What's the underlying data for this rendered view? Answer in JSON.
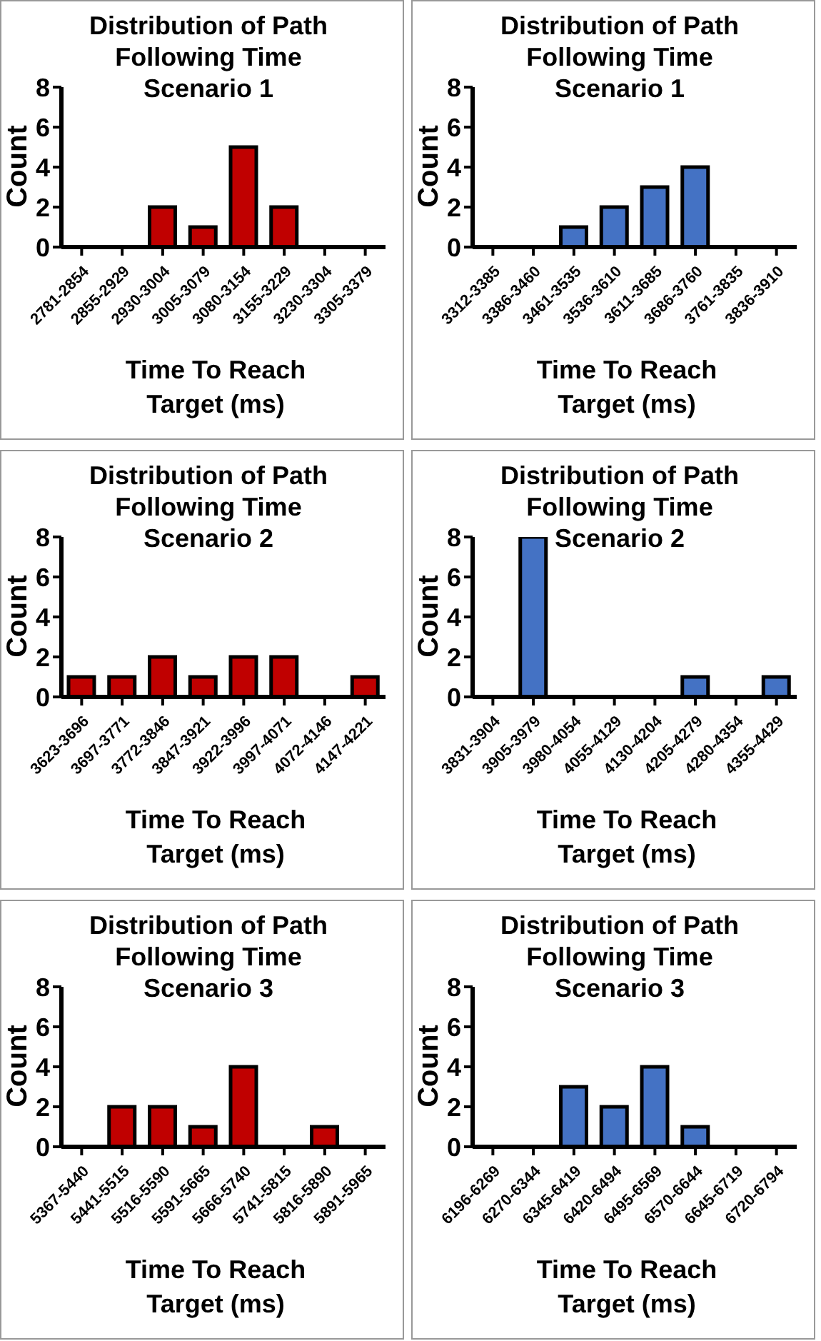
{
  "chart_data": [
    {
      "type": "bar",
      "title": "Distribution of Path Following Time Scenario 1",
      "xlabel": "Time To Reach Target (ms)",
      "ylabel": "Count",
      "categories": [
        "2781-2854",
        "2855-2929",
        "2930-3004",
        "3005-3079",
        "3080-3154",
        "3155-3229",
        "3230-3304",
        "3305-3379"
      ],
      "values": [
        0,
        0,
        2,
        1,
        5,
        2,
        0,
        0
      ],
      "color": "#c00000",
      "ylim": [
        0,
        8
      ],
      "yticks": [
        0,
        2,
        4,
        6,
        8
      ]
    },
    {
      "type": "bar",
      "title": "Distribution of Path Following Time Scenario 1",
      "xlabel": "Time To Reach Target (ms)",
      "ylabel": "Count",
      "categories": [
        "3312-3385",
        "3386-3460",
        "3461-3535",
        "3536-3610",
        "3611-3685",
        "3686-3760",
        "3761-3835",
        "3836-3910"
      ],
      "values": [
        0,
        0,
        1,
        2,
        3,
        4,
        0,
        0
      ],
      "color": "#4472c4",
      "ylim": [
        0,
        8
      ],
      "yticks": [
        0,
        2,
        4,
        6,
        8
      ]
    },
    {
      "type": "bar",
      "title": "Distribution of Path Following Time Scenario 2",
      "xlabel": "Time To Reach Target (ms)",
      "ylabel": "Count",
      "categories": [
        "3623-3696",
        "3697-3771",
        "3772-3846",
        "3847-3921",
        "3922-3996",
        "3997-4071",
        "4072-4146",
        "4147-4221"
      ],
      "values": [
        1,
        1,
        2,
        1,
        2,
        2,
        0,
        1
      ],
      "color": "#c00000",
      "ylim": [
        0,
        8
      ],
      "yticks": [
        0,
        2,
        4,
        6,
        8
      ]
    },
    {
      "type": "bar",
      "title": "Distribution of Path Following Time Scenario 2",
      "xlabel": "Time To Reach Target (ms)",
      "ylabel": "Count",
      "categories": [
        "3831-3904",
        "3905-3979",
        "3980-4054",
        "4055-4129",
        "4130-4204",
        "4205-4279",
        "4280-4354",
        "4355-4429"
      ],
      "values": [
        0,
        8,
        0,
        0,
        0,
        1,
        0,
        1
      ],
      "color": "#4472c4",
      "ylim": [
        0,
        8
      ],
      "yticks": [
        0,
        2,
        4,
        6,
        8
      ]
    },
    {
      "type": "bar",
      "title": "Distribution of Path Following Time Scenario 3",
      "xlabel": "Time To Reach Target (ms)",
      "ylabel": "Count",
      "categories": [
        "5367-5440",
        "5441-5515",
        "5516-5590",
        "5591-5665",
        "5666-5740",
        "5741-5815",
        "5816-5890",
        "5891-5965"
      ],
      "values": [
        0,
        2,
        2,
        1,
        4,
        0,
        1,
        0
      ],
      "color": "#c00000",
      "ylim": [
        0,
        8
      ],
      "yticks": [
        0,
        2,
        4,
        6,
        8
      ]
    },
    {
      "type": "bar",
      "title": "Distribution of Path Following Time Scenario 3",
      "xlabel": "Time To Reach Target (ms)",
      "ylabel": "Count",
      "categories": [
        "6196-6269",
        "6270-6344",
        "6345-6419",
        "6420-6494",
        "6495-6569",
        "6570-6644",
        "6645-6719",
        "6720-6794"
      ],
      "values": [
        0,
        0,
        3,
        2,
        4,
        1,
        0,
        0
      ],
      "color": "#4472c4",
      "ylim": [
        0,
        8
      ],
      "yticks": [
        0,
        2,
        4,
        6,
        8
      ]
    }
  ]
}
